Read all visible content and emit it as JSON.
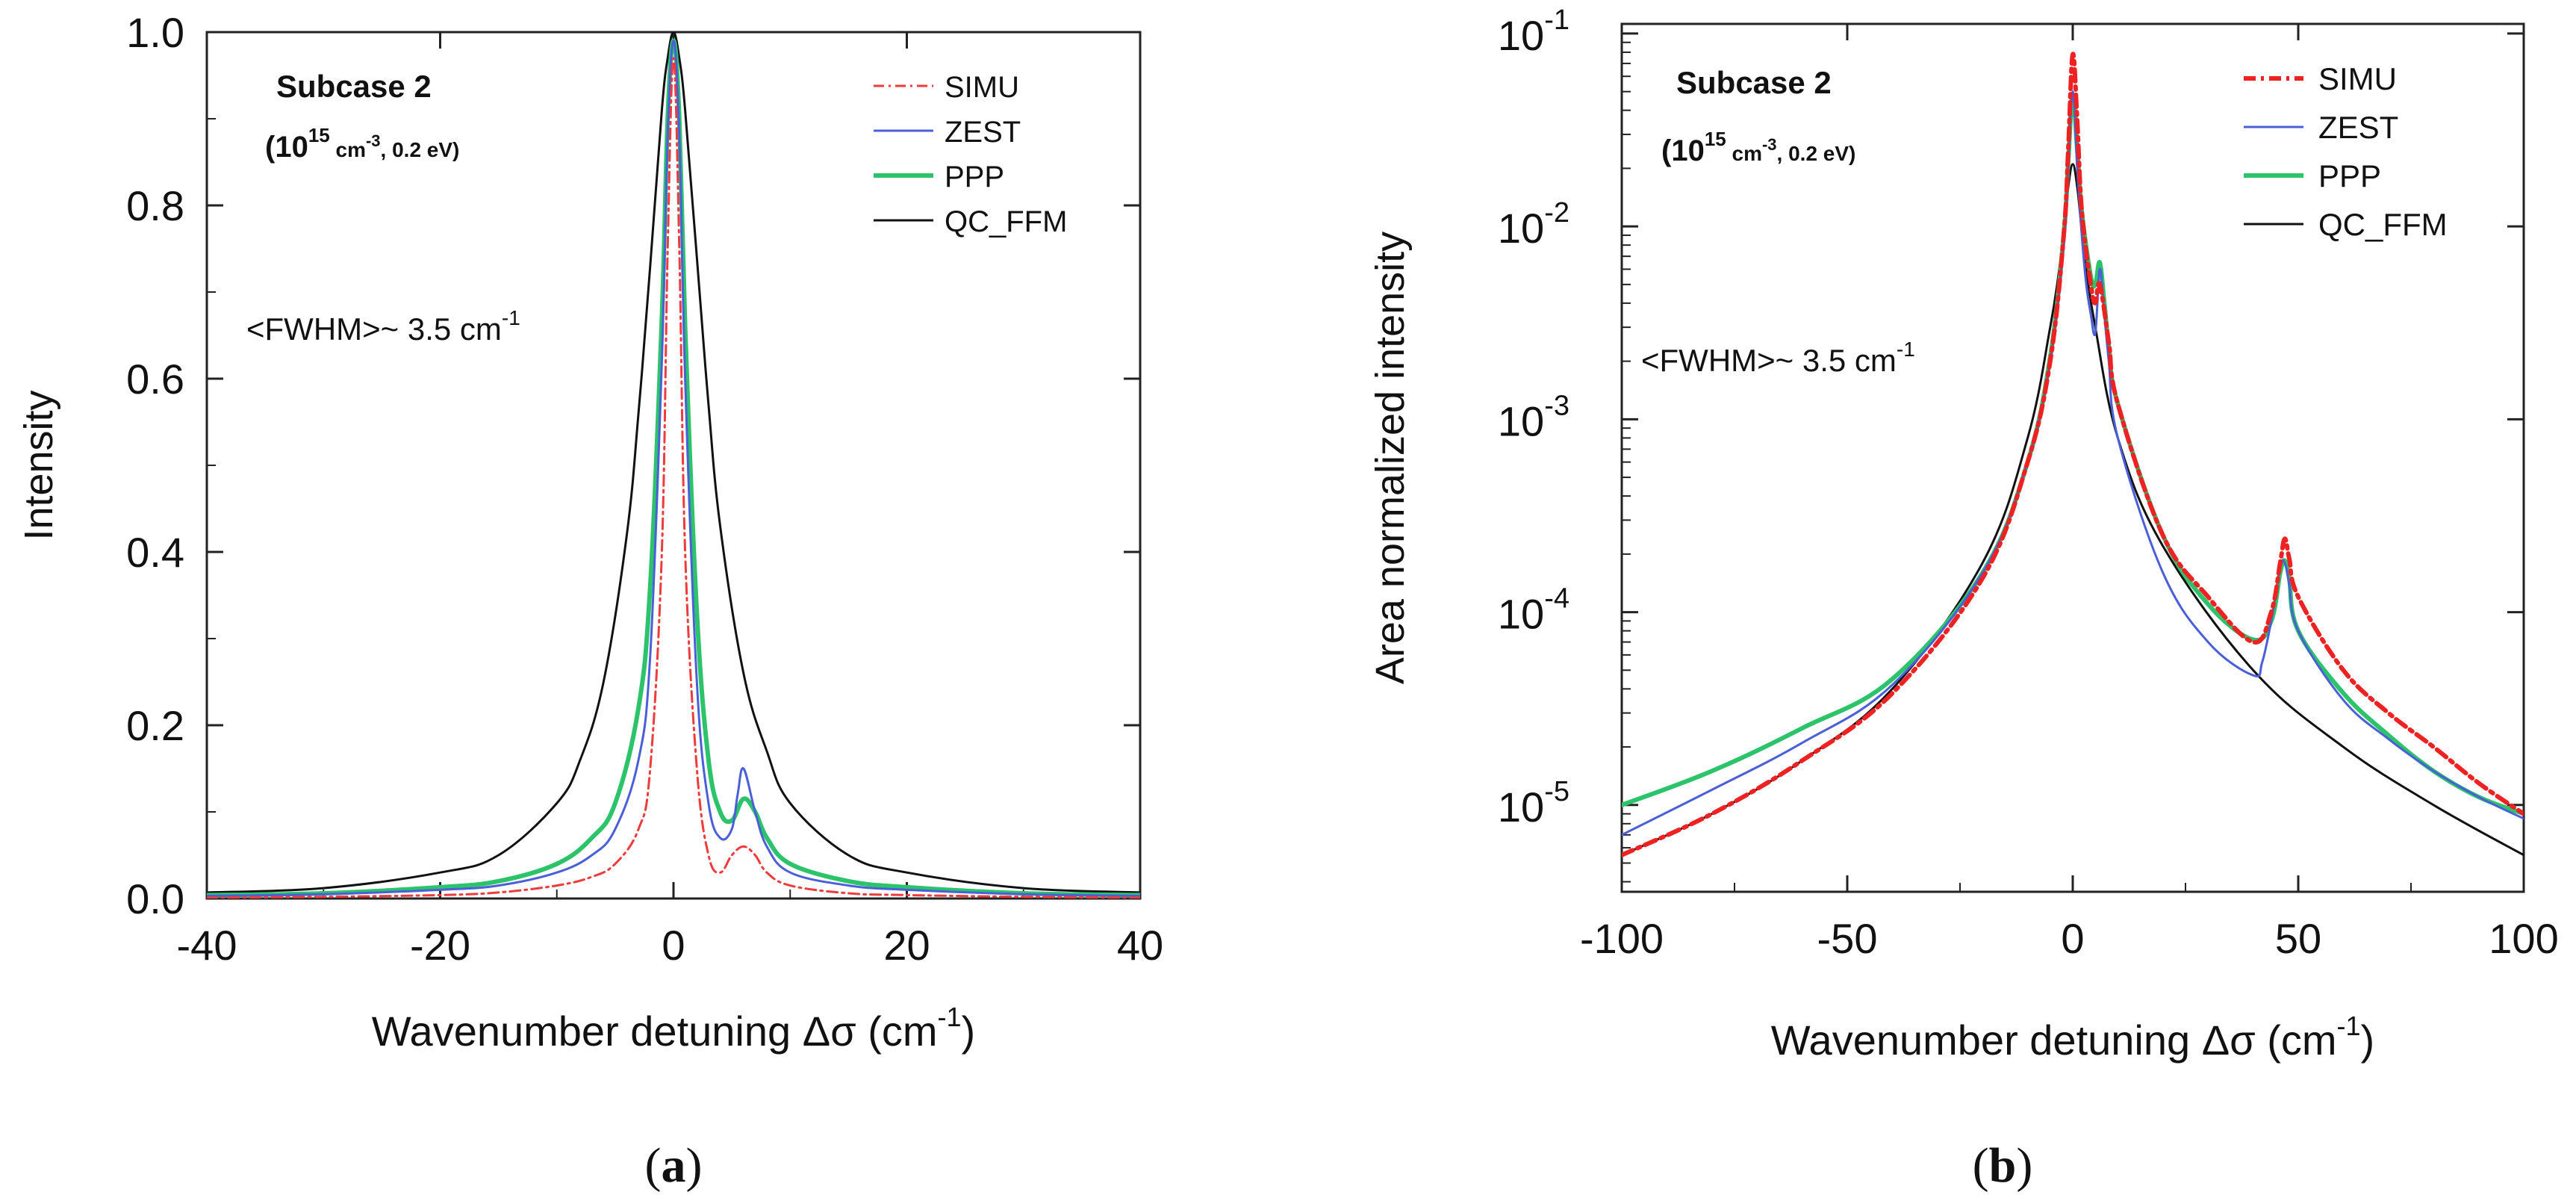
{
  "chart_data": [
    {
      "panel_label": "a",
      "type": "line",
      "yscale": "linear",
      "xlabel": "Wavenumber detuning Δσ (cm",
      "xlabel_sup": "-1",
      "xlabel_end": ")",
      "ylabel": "Intensity",
      "xlim": [
        -40,
        40
      ],
      "ylim": [
        0,
        1.0
      ],
      "xticks": [
        -40,
        -20,
        0,
        20,
        40
      ],
      "xtick_labels": [
        "-40",
        "-20",
        "0",
        "20",
        "40"
      ],
      "yticks": [
        0,
        0.2,
        0.4,
        0.6,
        0.8,
        1.0
      ],
      "ytick_labels": [
        "0.0",
        "0.2",
        "0.4",
        "0.6",
        "0.8",
        "1.0"
      ],
      "annotation_title": "Subcase 2",
      "annotation_cond_open": "(10",
      "annotation_cond_exp": "15",
      "annotation_cond_unit": "cm",
      "annotation_cond_unit_exp": "-3",
      "annotation_cond_close": ", 0.2 eV)",
      "annotation_fwhm": "<FWHM>~ 3.5 cm",
      "annotation_fwhm_exp": "-1",
      "legend_position": "top-right",
      "series": [
        {
          "name": "SIMU",
          "color": "#ee3b3b",
          "style": "dashdot",
          "x": [
            -40,
            -30,
            -20,
            -15,
            -10,
            -7,
            -5,
            -3,
            -2,
            -1,
            -0.5,
            0,
            0.5,
            1,
            2,
            3,
            4,
            5,
            6,
            7,
            8,
            10,
            15,
            20,
            30,
            40
          ],
          "y": [
            0.001,
            0.002,
            0.004,
            0.007,
            0.015,
            0.025,
            0.04,
            0.08,
            0.15,
            0.4,
            0.75,
            0.97,
            0.75,
            0.4,
            0.15,
            0.05,
            0.03,
            0.05,
            0.06,
            0.05,
            0.03,
            0.015,
            0.006,
            0.004,
            0.002,
            0.001
          ]
        },
        {
          "name": "ZEST",
          "color": "#4a5fd8",
          "style": "solid",
          "x": [
            -40,
            -30,
            -20,
            -15,
            -10,
            -7,
            -5,
            -3,
            -2,
            -1,
            -0.5,
            0,
            0.5,
            1,
            2,
            3,
            4,
            5,
            5.5,
            6,
            7,
            8,
            10,
            15,
            20,
            30,
            40
          ],
          "y": [
            0.003,
            0.005,
            0.01,
            0.015,
            0.03,
            0.05,
            0.08,
            0.16,
            0.28,
            0.62,
            0.88,
            0.99,
            0.88,
            0.6,
            0.25,
            0.11,
            0.07,
            0.08,
            0.12,
            0.15,
            0.1,
            0.06,
            0.03,
            0.015,
            0.01,
            0.005,
            0.003
          ]
        },
        {
          "name": "PPP",
          "color": "#2cc36b",
          "style": "solid",
          "x": [
            -40,
            -30,
            -20,
            -15,
            -10,
            -7,
            -5,
            -3,
            -2,
            -1,
            -0.5,
            0,
            0.5,
            1,
            2,
            3,
            4,
            5,
            6,
            7,
            8,
            10,
            15,
            20,
            30,
            40
          ],
          "y": [
            0.004,
            0.006,
            0.013,
            0.02,
            0.04,
            0.07,
            0.11,
            0.22,
            0.36,
            0.67,
            0.9,
            0.99,
            0.9,
            0.66,
            0.33,
            0.16,
            0.1,
            0.09,
            0.115,
            0.1,
            0.07,
            0.04,
            0.02,
            0.013,
            0.006,
            0.004
          ]
        },
        {
          "name": "QC_FFM",
          "color": "#111111",
          "style": "solid",
          "x": [
            -40,
            -30,
            -20,
            -15,
            -10,
            -8,
            -6,
            -4,
            -3,
            -2,
            -1,
            -0.5,
            0,
            0.5,
            1,
            2,
            3,
            4,
            6,
            8,
            10,
            15,
            20,
            30,
            40
          ],
          "y": [
            0.007,
            0.012,
            0.03,
            0.05,
            0.11,
            0.16,
            0.25,
            0.42,
            0.56,
            0.73,
            0.91,
            0.97,
            1.0,
            0.97,
            0.91,
            0.74,
            0.57,
            0.43,
            0.26,
            0.17,
            0.11,
            0.05,
            0.03,
            0.012,
            0.007
          ]
        }
      ]
    },
    {
      "panel_label": "b",
      "type": "line",
      "yscale": "log",
      "xlabel": "Wavenumber detuning Δσ (cm",
      "xlabel_sup": "-1",
      "xlabel_end": ")",
      "ylabel": "Area normalized intensity",
      "xlim": [
        -100,
        100
      ],
      "ylim_log10": [
        -5.45,
        -0.95
      ],
      "xticks": [
        -100,
        -50,
        0,
        50,
        100
      ],
      "xtick_labels": [
        "-100",
        "-50",
        "0",
        "50",
        "100"
      ],
      "yticks_log10": [
        -5,
        -4,
        -3,
        -2,
        -1
      ],
      "ytick_base": "10",
      "ytick_exps": [
        "-5",
        "-4",
        "-3",
        "-2",
        "-1"
      ],
      "annotation_title": "Subcase 2",
      "annotation_cond_open": "(10",
      "annotation_cond_exp": "15",
      "annotation_cond_unit": "cm",
      "annotation_cond_unit_exp": "-3",
      "annotation_cond_close": ", 0.2 eV)",
      "annotation_fwhm": "<FWHM>~ 3.5 cm",
      "annotation_fwhm_exp": "-1",
      "legend_position": "top-right",
      "series": [
        {
          "name": "SIMU",
          "color": "#ee2222",
          "style": "dashdot",
          "x": [
            -100,
            -80,
            -60,
            -40,
            -20,
            -10,
            -5,
            -2,
            -1,
            0,
            1,
            2,
            4,
            5,
            6,
            8,
            10,
            20,
            30,
            40,
            44,
            46,
            47,
            48,
            50,
            60,
            70,
            80,
            90,
            100
          ],
          "y": [
            5.5e-06,
            9e-06,
            1.7e-05,
            3.8e-05,
            0.00015,
            0.0006,
            0.002,
            0.009,
            0.025,
            0.078,
            0.035,
            0.012,
            0.005,
            0.004,
            0.005,
            0.0025,
            0.0012,
            0.00025,
            0.00012,
            7e-05,
            0.0001,
            0.00018,
            0.00024,
            0.00019,
            0.00012,
            5e-05,
            3e-05,
            2e-05,
            1.3e-05,
            9e-06
          ]
        },
        {
          "name": "ZEST",
          "color": "#4a5fd8",
          "style": "solid",
          "x": [
            -100,
            -80,
            -60,
            -40,
            -20,
            -10,
            -5,
            -2,
            -1,
            0,
            1,
            2,
            3,
            4,
            5,
            6,
            7,
            8,
            10,
            20,
            30,
            40,
            42,
            44,
            46,
            47,
            48,
            50,
            60,
            70,
            80,
            90,
            100
          ],
          "y": [
            7e-06,
            1.2e-05,
            2.1e-05,
            4.2e-05,
            0.00016,
            0.0006,
            0.002,
            0.008,
            0.02,
            0.05,
            0.02,
            0.009,
            0.005,
            0.0035,
            0.0028,
            0.006,
            0.0035,
            0.002,
            0.0008,
            0.00016,
            7e-05,
            4.7e-05,
            5.5e-05,
            9e-05,
            0.00017,
            0.00018,
            0.00014,
            8e-05,
            3.5e-05,
            2.2e-05,
            1.5e-05,
            1.1e-05,
            8.5e-06
          ]
        },
        {
          "name": "PPP",
          "color": "#2cc36b",
          "style": "solid",
          "x": [
            -100,
            -80,
            -60,
            -40,
            -20,
            -10,
            -5,
            -2,
            -1,
            0,
            1,
            2,
            4,
            5,
            6,
            7,
            8,
            10,
            20,
            30,
            40,
            44,
            46,
            47,
            48,
            50,
            60,
            70,
            80,
            90,
            100
          ],
          "y": [
            1e-05,
            1.5e-05,
            2.5e-05,
            4.5e-05,
            0.00016,
            0.0006,
            0.0021,
            0.009,
            0.022,
            0.048,
            0.025,
            0.012,
            0.0055,
            0.005,
            0.0065,
            0.004,
            0.0024,
            0.0012,
            0.00025,
            0.00011,
            7.2e-05,
            9e-05,
            0.00016,
            0.000185,
            0.00015,
            8e-05,
            3.8e-05,
            2.3e-05,
            1.5e-05,
            1.1e-05,
            9e-06
          ]
        },
        {
          "name": "QC_FFM",
          "color": "#111111",
          "style": "solid",
          "x": [
            -100,
            -80,
            -60,
            -40,
            -20,
            -10,
            -5,
            -3,
            -2,
            -1,
            0,
            1,
            2,
            3,
            5,
            10,
            20,
            40,
            60,
            80,
            100
          ],
          "y": [
            5.5e-06,
            9e-06,
            1.7e-05,
            4e-05,
            0.00018,
            0.0008,
            0.003,
            0.006,
            0.0095,
            0.016,
            0.021,
            0.016,
            0.0095,
            0.006,
            0.003,
            0.0008,
            0.00022,
            5e-05,
            2e-05,
            1e-05,
            5.5e-06
          ]
        }
      ]
    }
  ]
}
